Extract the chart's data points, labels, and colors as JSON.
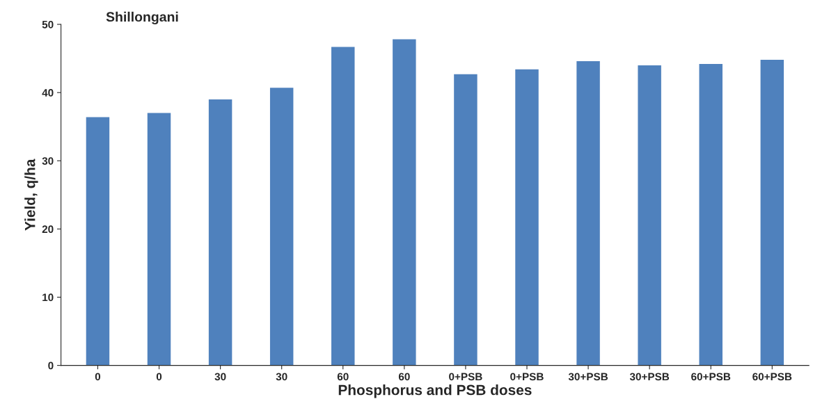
{
  "chart_data": {
    "type": "bar",
    "title": "Shillongani",
    "xlabel": "Phosphorus and PSB doses",
    "ylabel": "Yield, q/ha",
    "categories": [
      "0",
      "0",
      "30",
      "30",
      "60",
      "60",
      "0+PSB",
      "0+PSB",
      "30+PSB",
      "30+PSB",
      "60+PSB",
      "60+PSB"
    ],
    "values": [
      36.4,
      37.0,
      39.0,
      40.7,
      46.7,
      47.8,
      42.7,
      43.4,
      44.6,
      44.0,
      44.2,
      44.8
    ],
    "color": "#4f81bd",
    "ylim": [
      0,
      50
    ],
    "yticks": [
      0,
      10,
      20,
      30,
      40,
      50
    ],
    "grid": false,
    "legend": false
  }
}
